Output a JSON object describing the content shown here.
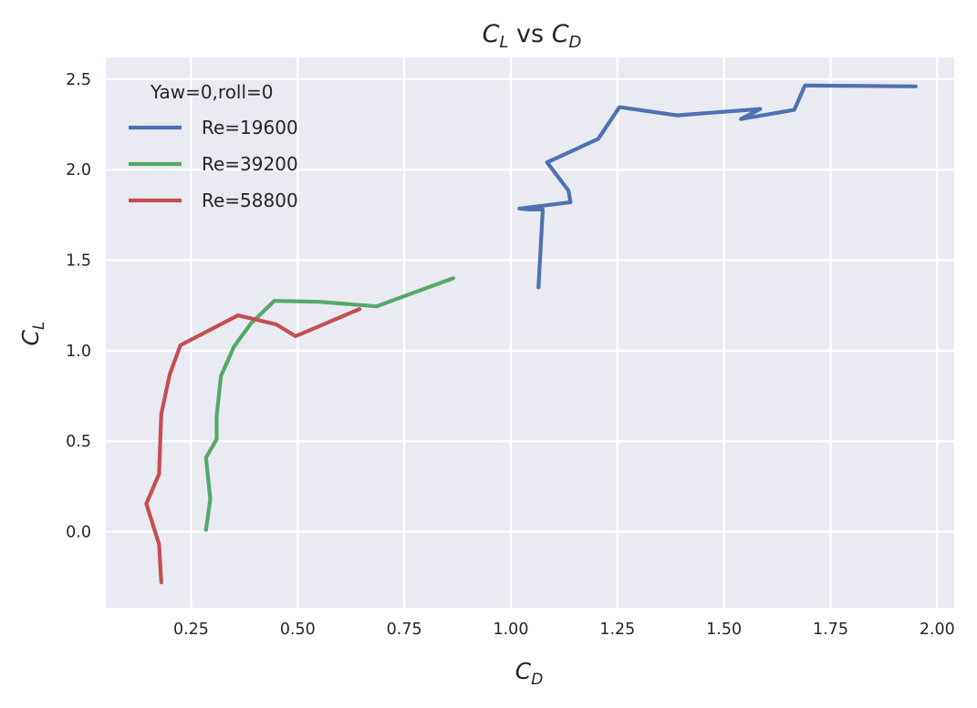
{
  "chart_data": {
    "type": "line",
    "title": "C_L vs C_D",
    "title_parts": {
      "a_main": "C",
      "a_sub": "L",
      "mid": " vs ",
      "b_main": "C",
      "b_sub": "D"
    },
    "xlabel_parts": {
      "main": "C",
      "sub": "D"
    },
    "ylabel_parts": {
      "main": "C",
      "sub": "L"
    },
    "xlim": [
      0.05,
      2.04
    ],
    "ylim": [
      -0.42,
      2.62
    ],
    "x_ticks": [
      0.25,
      0.5,
      0.75,
      1.0,
      1.25,
      1.5,
      1.75,
      2.0
    ],
    "x_tick_labels": [
      "0.25",
      "0.50",
      "0.75",
      "1.00",
      "1.25",
      "1.50",
      "1.75",
      "2.00"
    ],
    "y_ticks": [
      0.0,
      0.5,
      1.0,
      1.5,
      2.0,
      2.5
    ],
    "y_tick_labels": [
      "0.0",
      "0.5",
      "1.0",
      "1.5",
      "2.0",
      "2.5"
    ],
    "grid": true,
    "legend": {
      "title": "Yaw=0,roll=0",
      "placement": "top-left"
    },
    "series": [
      {
        "name": "Re=19600",
        "color": "#4c72b0",
        "x": [
          1.065,
          1.075,
          1.045,
          1.02,
          1.14,
          1.135,
          1.085,
          1.205,
          1.255,
          1.39,
          1.585,
          1.54,
          1.665,
          1.69,
          1.95
        ],
        "y": [
          1.35,
          1.78,
          1.78,
          1.785,
          1.82,
          1.885,
          2.04,
          2.17,
          2.345,
          2.3,
          2.335,
          2.28,
          2.33,
          2.465,
          2.46
        ]
      },
      {
        "name": "Re=39200",
        "color": "#55a868",
        "x": [
          0.285,
          0.295,
          0.285,
          0.31,
          0.31,
          0.32,
          0.35,
          0.39,
          0.445,
          0.55,
          0.685,
          0.76,
          0.865
        ],
        "y": [
          0.01,
          0.18,
          0.41,
          0.51,
          0.64,
          0.86,
          1.02,
          1.15,
          1.275,
          1.27,
          1.245,
          1.31,
          1.4
        ]
      },
      {
        "name": "Re=58800",
        "color": "#c44e52",
        "x": [
          0.18,
          0.175,
          0.145,
          0.175,
          0.178,
          0.18,
          0.2,
          0.225,
          0.36,
          0.45,
          0.495,
          0.575,
          0.645
        ],
        "y": [
          -0.28,
          -0.07,
          0.155,
          0.32,
          0.52,
          0.65,
          0.87,
          1.03,
          1.195,
          1.145,
          1.08,
          1.16,
          1.23
        ]
      }
    ]
  }
}
